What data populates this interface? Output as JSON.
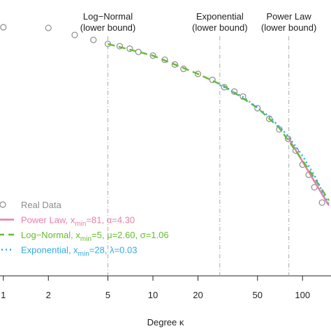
{
  "chart_data": {
    "type": "scatter",
    "x_label": "Degree κ",
    "xlog": true,
    "ylog": true,
    "xlim": [
      0.95,
      155
    ],
    "ylim": [
      0.0005,
      2.3
    ],
    "xticks": [
      1,
      2,
      5,
      10,
      20,
      50,
      100
    ],
    "vlines": [
      {
        "x": 5,
        "label": [
          "Log−Normal",
          "(lower bound)"
        ]
      },
      {
        "x": 28,
        "label": [
          "Exponential",
          "(lower bound)"
        ]
      },
      {
        "x": 81,
        "label": [
          "Power Law",
          "(lower bound)"
        ]
      }
    ],
    "series": [
      {
        "legend": [
          "Real Data"
        ],
        "color": "#8c8c8c",
        "style": "points",
        "x": [
          1,
          2,
          3,
          4,
          5,
          6,
          7,
          8,
          10,
          12,
          14,
          16,
          20,
          25,
          30,
          35,
          40,
          50,
          60,
          70,
          80,
          90,
          100,
          110,
          120,
          135
        ],
        "values": [
          1.0,
          0.98,
          0.79,
          0.68,
          0.6,
          0.56,
          0.52,
          0.47,
          0.42,
          0.37,
          0.32,
          0.28,
          0.24,
          0.2,
          0.16,
          0.14,
          0.12,
          0.084,
          0.061,
          0.044,
          0.033,
          0.023,
          0.015,
          0.011,
          0.0075,
          0.0047
        ]
      },
      {
        "legend": [
          "Power Law,  x",
          "min",
          "=81,  α=4.30"
        ],
        "color": "#e87ea8",
        "style": "solid",
        "x": [
          81,
          100,
          120,
          150
        ],
        "values": [
          0.033,
          0.0165,
          0.009,
          0.0043
        ]
      },
      {
        "legend": [
          "Log−Normal,  x",
          "min",
          "=5,  μ=2.60,  σ=1.06"
        ],
        "color": "#66bb33",
        "style": "dashed",
        "x": [
          5,
          10,
          20,
          30,
          50,
          70,
          100,
          120,
          150
        ],
        "values": [
          0.6,
          0.42,
          0.24,
          0.165,
          0.085,
          0.046,
          0.017,
          0.01,
          0.005
        ]
      },
      {
        "legend": [
          "Exponential,  x",
          "min",
          "=28,  λ=0.03"
        ],
        "color": "#33aadd",
        "style": "dotted",
        "x": [
          28,
          40,
          60,
          80,
          100,
          120,
          150
        ],
        "values": [
          0.17,
          0.119,
          0.065,
          0.036,
          0.0196,
          0.0108,
          0.0044
        ]
      }
    ]
  }
}
